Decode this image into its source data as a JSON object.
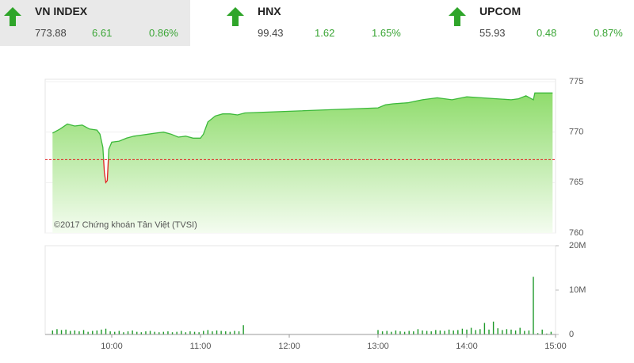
{
  "indices": [
    {
      "name": "VN INDEX",
      "value": "773.88",
      "change": "6.61",
      "change_pct": "0.86%"
    },
    {
      "name": "HNX",
      "value": "99.43",
      "change": "1.62",
      "change_pct": "1.65%"
    },
    {
      "name": "UPCOM",
      "value": "55.93",
      "change": "0.48",
      "change_pct": "0.87%"
    }
  ],
  "chart_data": [
    {
      "type": "area",
      "annotation": "©2017 Chứng khoán Tân Việt (TVSI)",
      "x": [
        560,
        565,
        570,
        575,
        580,
        585,
        590,
        592,
        594,
        595,
        596,
        597,
        598,
        600,
        605,
        610,
        615,
        620,
        625,
        630,
        635,
        640,
        645,
        650,
        655,
        660,
        662,
        665,
        670,
        675,
        680,
        685,
        690,
        780,
        785,
        790,
        800,
        810,
        820,
        830,
        840,
        850,
        860,
        870,
        875,
        880,
        885,
        886,
        898
      ],
      "values": [
        769.9,
        770.3,
        770.8,
        770.6,
        770.7,
        770.3,
        770.2,
        769.8,
        768.5,
        766.0,
        765.0,
        765.2,
        768.3,
        769.0,
        769.1,
        769.4,
        769.6,
        769.7,
        769.8,
        769.9,
        770.0,
        769.8,
        769.5,
        769.6,
        769.4,
        769.4,
        769.8,
        771.0,
        771.6,
        771.8,
        771.8,
        771.7,
        771.9,
        772.4,
        772.7,
        772.8,
        772.9,
        773.2,
        773.4,
        773.2,
        773.5,
        773.4,
        773.3,
        773.2,
        773.3,
        773.6,
        773.2,
        773.88,
        773.88
      ],
      "color": "#3cb93a",
      "down_color": "#e02020",
      "reference": 767.27,
      "xlim": [
        555,
        900
      ],
      "ylim": [
        760,
        775
      ],
      "yticks": [
        775,
        770,
        765,
        760
      ],
      "grid": true
    },
    {
      "type": "bar",
      "color": "#1f9a2a",
      "x": [
        560,
        563,
        566,
        569,
        572,
        575,
        578,
        581,
        584,
        587,
        590,
        593,
        596,
        599,
        602,
        605,
        608,
        611,
        614,
        617,
        620,
        623,
        626,
        629,
        632,
        635,
        638,
        641,
        644,
        647,
        650,
        653,
        656,
        659,
        662,
        665,
        668,
        671,
        674,
        677,
        680,
        683,
        686,
        689,
        780,
        783,
        786,
        789,
        792,
        795,
        798,
        801,
        804,
        807,
        810,
        813,
        816,
        819,
        822,
        825,
        828,
        831,
        834,
        837,
        840,
        843,
        846,
        849,
        852,
        855,
        858,
        861,
        864,
        867,
        870,
        873,
        876,
        879,
        882,
        885,
        888,
        891,
        894,
        897
      ],
      "values": [
        0.9,
        1.2,
        1.0,
        1.1,
        0.8,
        0.9,
        0.7,
        1.0,
        0.6,
        0.8,
        0.9,
        1.1,
        1.3,
        0.7,
        0.6,
        0.8,
        0.5,
        0.7,
        0.9,
        0.6,
        0.5,
        0.7,
        0.8,
        0.6,
        0.5,
        0.6,
        0.7,
        0.5,
        0.6,
        0.8,
        0.5,
        0.7,
        0.6,
        0.5,
        0.8,
        1.0,
        0.7,
        0.9,
        0.8,
        0.7,
        0.6,
        0.8,
        0.7,
        2.1,
        1.0,
        0.7,
        0.8,
        0.6,
        0.9,
        0.7,
        0.6,
        0.8,
        0.7,
        1.2,
        0.9,
        0.8,
        0.7,
        1.0,
        0.9,
        0.8,
        1.1,
        0.9,
        1.0,
        1.3,
        1.1,
        1.5,
        1.0,
        1.2,
        2.6,
        1.1,
        2.9,
        1.4,
        1.0,
        1.2,
        1.1,
        0.9,
        1.5,
        0.8,
        0.9,
        13.0,
        0.3,
        1.1,
        0.2,
        0.6
      ],
      "xlim": [
        555,
        900
      ],
      "ylim": [
        0,
        20
      ],
      "yticks": [
        {
          "value": 20,
          "label": "20M"
        },
        {
          "value": 10,
          "label": "10M"
        },
        0
      ],
      "xticks": [
        {
          "value": 600,
          "label": "10:00"
        },
        {
          "value": 660,
          "label": "11:00"
        },
        {
          "value": 720,
          "label": "12:00"
        },
        {
          "value": 780,
          "label": "13:00"
        },
        {
          "value": 840,
          "label": "14:00"
        },
        {
          "value": 900,
          "label": "15:00"
        }
      ]
    }
  ]
}
